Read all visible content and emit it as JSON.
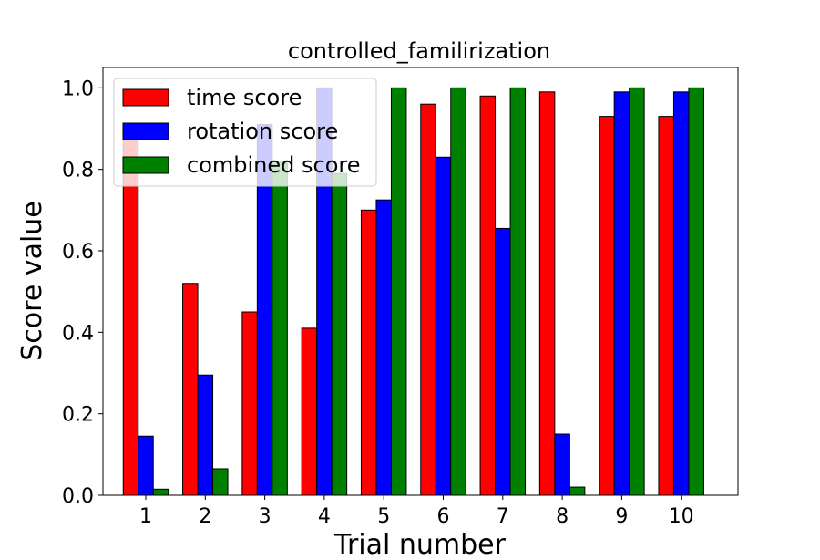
{
  "chart_data": {
    "type": "bar",
    "title": "controlled_familirization",
    "xlabel": "Trial number",
    "ylabel": "Score value",
    "categories": [
      "1",
      "2",
      "3",
      "4",
      "5",
      "6",
      "7",
      "8",
      "9",
      "10"
    ],
    "ylim": [
      0,
      1.05
    ],
    "yticks": [
      "0.0",
      "0.2",
      "0.4",
      "0.6",
      "0.8",
      "1.0"
    ],
    "grid": false,
    "legend_position": "upper-left",
    "series": [
      {
        "name": "time score",
        "color": "#ff0000",
        "values": [
          0.88,
          0.52,
          0.45,
          0.41,
          0.7,
          0.96,
          0.98,
          0.99,
          0.93,
          0.93
        ]
      },
      {
        "name": "rotation score",
        "color": "#0000ff",
        "values": [
          0.145,
          0.295,
          0.91,
          1.0,
          0.725,
          0.83,
          0.655,
          0.15,
          0.99,
          0.99
        ]
      },
      {
        "name": "combined score",
        "color": "#008000",
        "values": [
          0.015,
          0.065,
          0.82,
          0.79,
          1.0,
          1.0,
          1.0,
          0.02,
          1.0,
          1.0
        ]
      }
    ]
  }
}
